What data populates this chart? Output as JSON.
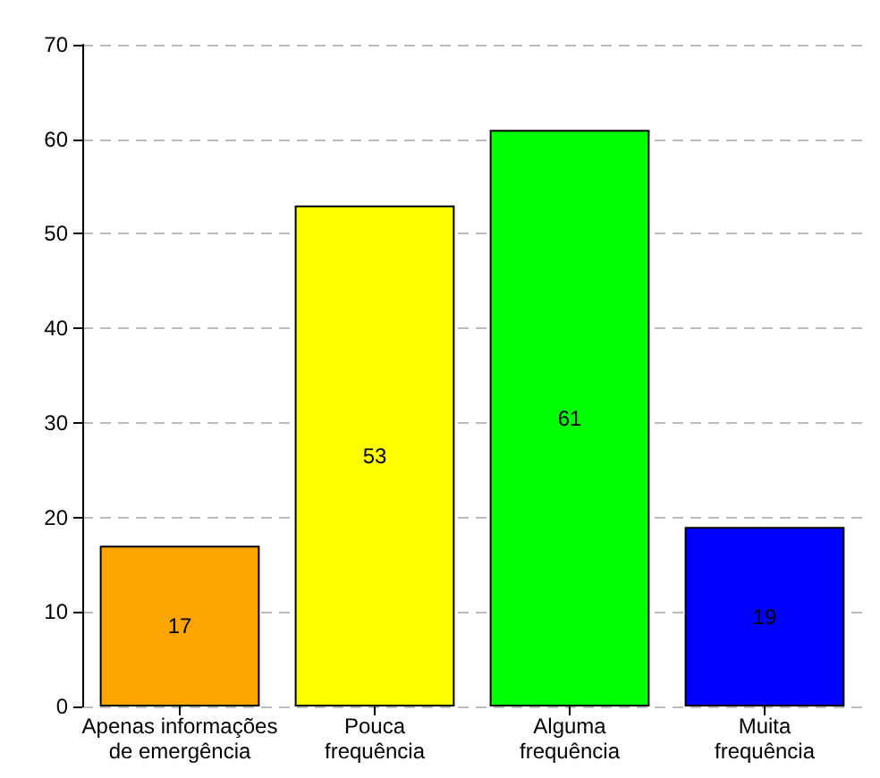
{
  "chart_data": {
    "type": "bar",
    "categories": [
      "Apenas informações\nde emergência",
      "Pouca\nfrequência",
      "Alguma\nfrequência",
      "Muita\nfrequência"
    ],
    "values": [
      17,
      53,
      61,
      19
    ],
    "colors": [
      "#ffa500",
      "#ffff00",
      "#00ff00",
      "#0000ff"
    ],
    "ylim": [
      0,
      70
    ],
    "yticks": [
      0,
      10,
      20,
      30,
      40,
      50,
      60,
      70
    ],
    "grid": "y",
    "data_labels": true
  }
}
